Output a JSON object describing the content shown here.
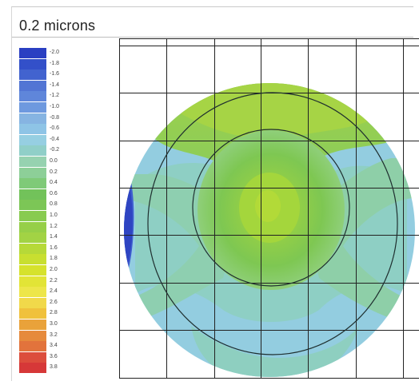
{
  "title": "0.2 microns",
  "legend": {
    "entries": [
      {
        "label": "-2.0",
        "color": "#2a3fc2"
      },
      {
        "label": "-1.8",
        "color": "#3350c9"
      },
      {
        "label": "-1.6",
        "color": "#4263cf"
      },
      {
        "label": "-1.4",
        "color": "#5275d4"
      },
      {
        "label": "-1.2",
        "color": "#5f86da"
      },
      {
        "label": "-1.0",
        "color": "#6e99df"
      },
      {
        "label": "-0.8",
        "color": "#86b4e2"
      },
      {
        "label": "-0.6",
        "color": "#8ec4e6"
      },
      {
        "label": "-0.4",
        "color": "#96cfe2"
      },
      {
        "label": "-0.2",
        "color": "#90cfc8"
      },
      {
        "label": "0.0",
        "color": "#96d2b0"
      },
      {
        "label": "0.2",
        "color": "#8dcf98"
      },
      {
        "label": "0.4",
        "color": "#7fca78"
      },
      {
        "label": "0.6",
        "color": "#72c25a"
      },
      {
        "label": "0.8",
        "color": "#7cc656"
      },
      {
        "label": "1.0",
        "color": "#88cb50"
      },
      {
        "label": "1.2",
        "color": "#96cf48"
      },
      {
        "label": "1.4",
        "color": "#a2d344"
      },
      {
        "label": "1.6",
        "color": "#b6d938"
      },
      {
        "label": "1.8",
        "color": "#c8df30"
      },
      {
        "label": "2.0",
        "color": "#d6e22c"
      },
      {
        "label": "2.2",
        "color": "#e2e436"
      },
      {
        "label": "2.4",
        "color": "#ede64a"
      },
      {
        "label": "2.6",
        "color": "#f1d94a"
      },
      {
        "label": "2.8",
        "color": "#f0c13c"
      },
      {
        "label": "3.0",
        "color": "#e9a23a"
      },
      {
        "label": "3.2",
        "color": "#e68a3c"
      },
      {
        "label": "3.4",
        "color": "#e2733c"
      },
      {
        "label": "3.6",
        "color": "#dc4d3c"
      },
      {
        "label": "3.8",
        "color": "#d63838"
      }
    ]
  },
  "map": {
    "grid_color": "#222222",
    "background": "#ffffff"
  }
}
